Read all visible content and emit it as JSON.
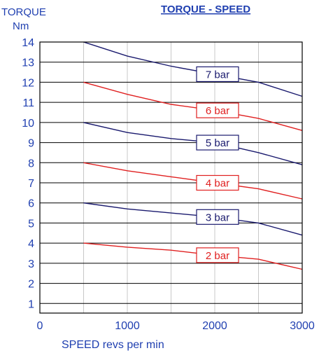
{
  "chart_data": {
    "type": "line",
    "title": "TORQUE - SPEED",
    "ylabel_line1": "TORQUE",
    "ylabel_line2": "Nm",
    "xlabel": "SPEED revs per min",
    "xlim": [
      0,
      3000
    ],
    "ylim": [
      0,
      14
    ],
    "xticks": [
      0,
      1000,
      2000,
      3000
    ],
    "yticks": [
      1,
      2,
      3,
      4,
      5,
      6,
      7,
      8,
      9,
      10,
      11,
      12,
      13,
      14
    ],
    "grid": true,
    "x": [
      500,
      1000,
      1500,
      2000,
      2500,
      3000
    ],
    "series": [
      {
        "name": "7 bar",
        "color": "#1a1a6e",
        "values": [
          14.0,
          13.3,
          12.8,
          12.4,
          12.0,
          11.3
        ],
        "label_x": 2000,
        "label_y": 12.4
      },
      {
        "name": "6 bar",
        "color": "#e02020",
        "values": [
          12.0,
          11.4,
          10.9,
          10.6,
          10.2,
          9.6
        ],
        "label_x": 2000,
        "label_y": 10.6
      },
      {
        "name": "5 bar",
        "color": "#1a1a6e",
        "values": [
          10.0,
          9.5,
          9.2,
          9.0,
          8.5,
          7.9
        ],
        "label_x": 2000,
        "label_y": 9.0
      },
      {
        "name": "4 bar",
        "color": "#e02020",
        "values": [
          8.0,
          7.6,
          7.3,
          7.0,
          6.7,
          6.2
        ],
        "label_x": 2000,
        "label_y": 7.0
      },
      {
        "name": "3 bar",
        "color": "#1a1a6e",
        "values": [
          6.0,
          5.7,
          5.5,
          5.3,
          5.0,
          4.4
        ],
        "label_x": 2000,
        "label_y": 5.3
      },
      {
        "name": "2 bar",
        "color": "#e02020",
        "values": [
          4.0,
          3.8,
          3.65,
          3.4,
          3.2,
          2.7
        ],
        "label_x": 2000,
        "label_y": 3.4
      }
    ]
  }
}
